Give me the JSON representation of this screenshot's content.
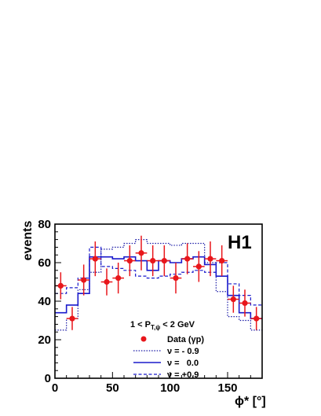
{
  "chart_data": {
    "type": "line",
    "title": "",
    "xlabel": "ϕ* [°]",
    "ylabel": "events",
    "xlim": [
      0,
      180
    ],
    "ylim": [
      0,
      80
    ],
    "x_ticks": [
      0,
      50,
      100,
      150
    ],
    "x_tick_labels": [
      "0",
      "50",
      "100",
      "150"
    ],
    "y_ticks": [
      0,
      20,
      40,
      60,
      80
    ],
    "y_tick_labels": [
      "0",
      "20",
      "40",
      "60",
      "80"
    ],
    "brand_label": "H1",
    "cut_label": "1 < P",
    "cut_label_sub": "T,ψ",
    "cut_label_rest": " < 2 GeV",
    "legend": [
      {
        "label": "Data (γp)",
        "marker": "dot"
      },
      {
        "label": "ν = - 0.9",
        "line": "dotted"
      },
      {
        "label": "ν =   0.0",
        "line": "solid"
      },
      {
        "label": "ν = +0.9",
        "line": "dashed"
      }
    ],
    "bin_edges": [
      0,
      10,
      20,
      30,
      40,
      50,
      60,
      70,
      80,
      90,
      100,
      110,
      120,
      130,
      140,
      150,
      160,
      170,
      180
    ],
    "x_centers": [
      5,
      15,
      25,
      35,
      45,
      55,
      65,
      75,
      85,
      95,
      105,
      115,
      125,
      135,
      145,
      155,
      165,
      175
    ],
    "data": {
      "name": "Data (γp)",
      "values": [
        48,
        31,
        51,
        62,
        50,
        52,
        61,
        65,
        61,
        61,
        52,
        62,
        58,
        62,
        61,
        41,
        39,
        31
      ],
      "errors": [
        7,
        6,
        8,
        9,
        7,
        8,
        8,
        9,
        8,
        8,
        8,
        8,
        8,
        9,
        8,
        7,
        7,
        6
      ],
      "color": "#e8161b"
    },
    "series": [
      {
        "name": "ν = - 0.9",
        "style": "dotted",
        "color": "#1a1aa6",
        "values": [
          25,
          31,
          46,
          55,
          67,
          68,
          70,
          72,
          70,
          70,
          69,
          70,
          70,
          60,
          45,
          32,
          30,
          25
        ]
      },
      {
        "name": "ν =   0.0",
        "style": "solid",
        "color": "#1a1acc",
        "values": [
          34,
          38,
          44,
          63,
          63,
          62,
          63,
          61,
          56,
          61,
          60,
          62,
          63,
          59,
          53,
          43,
          34,
          31
        ]
      },
      {
        "name": "ν = +0.9",
        "style": "dashed",
        "color": "#1a1acc",
        "values": [
          44,
          47,
          52,
          68,
          58,
          57,
          56,
          53,
          52,
          53,
          54,
          55,
          56,
          55,
          60,
          49,
          43,
          38
        ]
      }
    ]
  }
}
